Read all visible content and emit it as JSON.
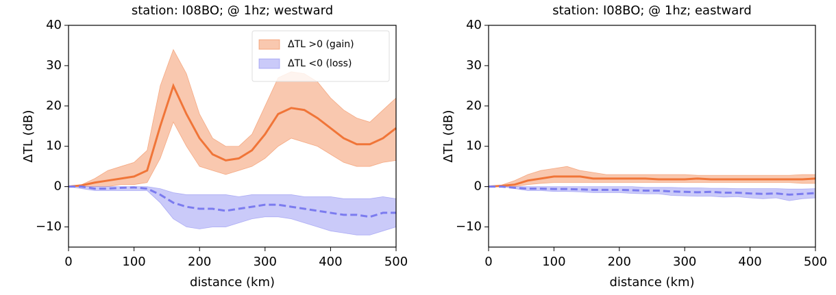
{
  "chart_data": [
    {
      "type": "line",
      "title": "station: I08BO; @ 1hz; westward",
      "xlabel": "distance (km)",
      "ylabel": "ΔTL (dB)",
      "xlim": [
        0,
        500
      ],
      "xticks": [
        0,
        100,
        200,
        300,
        400,
        500
      ],
      "ylim": [
        -15,
        40
      ],
      "yticks": [
        {
          "value": -10,
          "label": "−10"
        },
        0,
        10,
        20,
        30,
        40
      ],
      "legend": "upper right",
      "x": [
        0,
        20,
        40,
        60,
        80,
        100,
        120,
        140,
        160,
        180,
        200,
        220,
        240,
        260,
        280,
        300,
        320,
        340,
        360,
        380,
        400,
        420,
        440,
        460,
        480,
        500
      ],
      "series": [
        {
          "name": "ΔTL >0 (gain)",
          "color": "#f07538",
          "style": "solid",
          "values": [
            0,
            0.3,
            1,
            1.5,
            2,
            2.5,
            4,
            15,
            25,
            18,
            12,
            8,
            6.5,
            7,
            9,
            13,
            18,
            19.5,
            19,
            17,
            14.5,
            12,
            10.5,
            10.5,
            12,
            14.5
          ],
          "upper": [
            0,
            0.5,
            2,
            4,
            5,
            6,
            9,
            25,
            34,
            28,
            18,
            12,
            10,
            10,
            13,
            20,
            27,
            28.5,
            28,
            26,
            22,
            19,
            17,
            16,
            19,
            22
          ],
          "lower": [
            0,
            0,
            0,
            0,
            0.5,
            0.5,
            1,
            7,
            16,
            10,
            5,
            4,
            3,
            4,
            5,
            7,
            10,
            12,
            11,
            10,
            8,
            6,
            5,
            5,
            6,
            6.5
          ]
        },
        {
          "name": "ΔTL <0 (loss)",
          "color": "#7b7bef",
          "style": "dashed",
          "values": [
            0,
            0,
            -0.5,
            -0.5,
            -0.3,
            -0.2,
            -0.5,
            -2,
            -4,
            -5,
            -5.5,
            -5.5,
            -6,
            -5.5,
            -5,
            -4.5,
            -4.5,
            -5,
            -5.5,
            -6,
            -6.5,
            -7,
            -7,
            -7.5,
            -6.5,
            -6.5
          ],
          "upper": [
            0,
            0,
            0,
            0,
            0,
            0,
            0,
            -0.5,
            -1.5,
            -2,
            -2,
            -2,
            -2,
            -2.5,
            -2,
            -2,
            -2,
            -2,
            -2.5,
            -2.5,
            -2.5,
            -3,
            -3,
            -3,
            -2.5,
            -3
          ],
          "lower": [
            0,
            -0.5,
            -1,
            -1,
            -1,
            -1,
            -1,
            -4,
            -8,
            -10,
            -10.5,
            -10,
            -10,
            -9,
            -8,
            -7.5,
            -7.5,
            -8,
            -9,
            -10,
            -11,
            -11.5,
            -12,
            -12,
            -11,
            -10
          ]
        }
      ]
    },
    {
      "type": "line",
      "title": "station: I08BO; @ 1hz; eastward",
      "xlabel": "distance (km)",
      "ylabel": "ΔTL (dB)",
      "xlim": [
        0,
        500
      ],
      "xticks": [
        0,
        100,
        200,
        300,
        400,
        500
      ],
      "ylim": [
        -15,
        40
      ],
      "yticks": [
        {
          "value": -10,
          "label": "−10"
        },
        0,
        10,
        20,
        30,
        40
      ],
      "x": [
        0,
        20,
        40,
        60,
        80,
        100,
        120,
        140,
        160,
        180,
        200,
        220,
        240,
        260,
        280,
        300,
        320,
        340,
        360,
        380,
        400,
        420,
        440,
        460,
        480,
        500
      ],
      "series": [
        {
          "color": "#f07538",
          "style": "solid",
          "values": [
            0,
            0.2,
            0.5,
            1.5,
            2,
            2.5,
            2.5,
            2.5,
            2,
            2,
            2,
            2,
            2,
            1.8,
            1.8,
            1.8,
            2,
            1.8,
            1.8,
            1.8,
            1.8,
            1.8,
            1.8,
            1.8,
            1.8,
            2
          ],
          "upper": [
            0,
            0.4,
            1.5,
            3,
            4,
            4.5,
            5,
            4,
            3.5,
            3,
            3,
            3,
            3,
            3,
            3,
            3,
            2.8,
            2.8,
            2.8,
            2.8,
            2.8,
            2.8,
            2.8,
            2.8,
            3,
            3
          ],
          "lower": [
            0,
            0,
            0,
            0.5,
            0.8,
            1,
            1,
            1,
            1,
            1,
            1,
            1,
            1,
            1,
            1,
            1,
            1,
            1,
            1,
            1,
            1,
            1,
            1,
            1,
            0.8,
            0.8
          ]
        },
        {
          "color": "#7b7bef",
          "style": "dashed",
          "values": [
            0,
            0,
            -0.3,
            -0.5,
            -0.5,
            -0.6,
            -0.6,
            -0.7,
            -0.8,
            -0.8,
            -0.8,
            -0.9,
            -1,
            -1,
            -1.2,
            -1.3,
            -1.4,
            -1.3,
            -1.5,
            -1.5,
            -1.7,
            -1.8,
            -1.7,
            -2,
            -1.8,
            -1.6
          ],
          "upper": [
            0,
            0,
            0,
            0,
            0,
            0,
            0,
            0,
            0,
            0,
            0,
            0,
            -0.2,
            -0.2,
            -0.2,
            -0.3,
            -0.3,
            -0.4,
            -0.4,
            -0.5,
            -0.5,
            -0.5,
            -0.5,
            -0.6,
            -0.6,
            -0.5
          ],
          "lower": [
            0,
            0,
            -0.5,
            -1,
            -1,
            -1.2,
            -1.2,
            -1.3,
            -1.5,
            -1.5,
            -1.5,
            -1.7,
            -1.8,
            -1.8,
            -2.2,
            -2.3,
            -2.4,
            -2.4,
            -2.6,
            -2.5,
            -2.8,
            -3,
            -2.8,
            -3.5,
            -3,
            -2.8
          ]
        }
      ]
    }
  ]
}
